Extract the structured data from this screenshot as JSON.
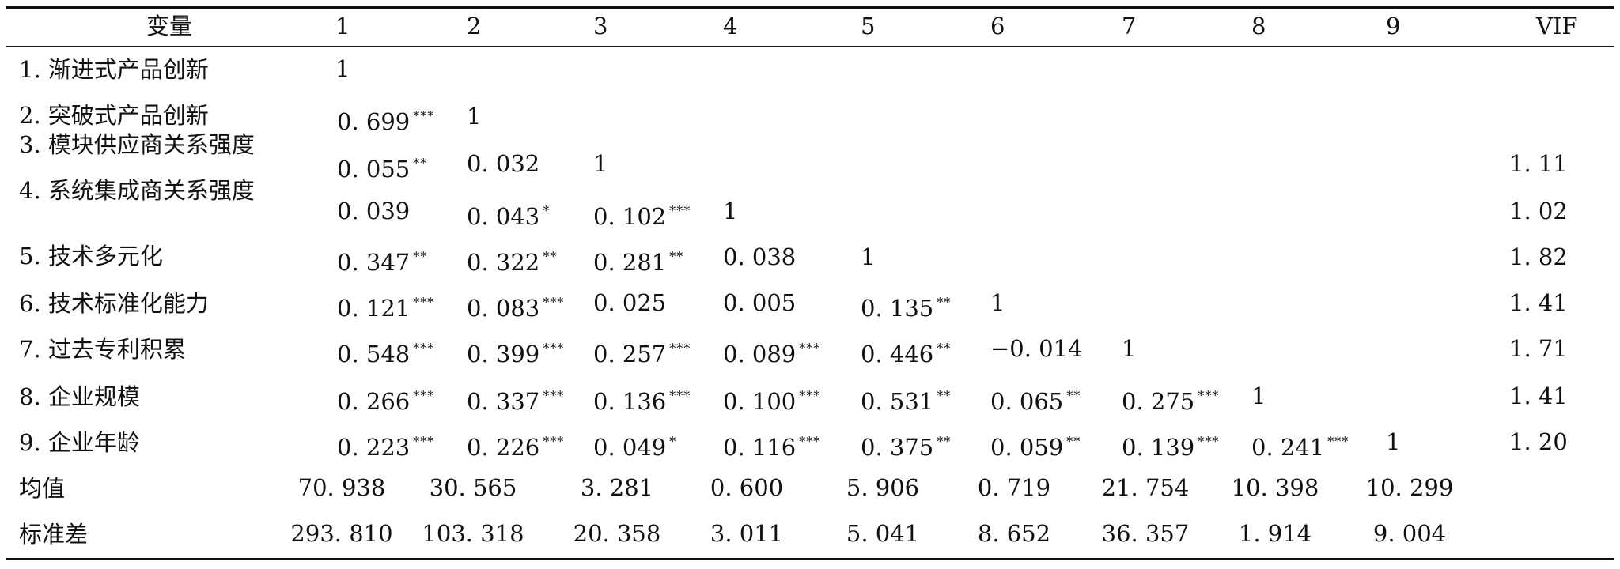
{
  "header": [
    "变量",
    "1",
    "2",
    "3",
    "4",
    "5",
    "6",
    "7",
    "8",
    "9",
    "VIF"
  ],
  "rows": [
    {
      "label": "1. 渐进式产品创新",
      "cells": [
        [
          "1",
          ""
        ]
      ],
      "vif": ""
    },
    {
      "label": "2. 突破式产品创新",
      "cells": [
        [
          "0. 699",
          "***"
        ],
        [
          "1",
          ""
        ]
      ],
      "vif": ""
    },
    {
      "label": "3. 模块供应商关系强度",
      "cells": [
        [
          "0. 055",
          "**"
        ],
        [
          "0. 032",
          ""
        ],
        [
          "1",
          ""
        ]
      ],
      "vif": "1. 11"
    },
    {
      "label": "4. 系统集成商关系强度",
      "cells": [
        [
          "0. 039",
          ""
        ],
        [
          "0. 043",
          "*"
        ],
        [
          "0. 102",
          "***"
        ],
        [
          "1",
          ""
        ]
      ],
      "vif": "1. 02"
    },
    {
      "label": "5. 技术多元化",
      "cells": [
        [
          "0. 347",
          "**"
        ],
        [
          "0. 322",
          "**"
        ],
        [
          "0. 281",
          "**"
        ],
        [
          "0. 038",
          ""
        ],
        [
          "1",
          ""
        ]
      ],
      "vif": "1. 82"
    },
    {
      "label": "6. 技术标准化能力",
      "cells": [
        [
          "0. 121",
          "***"
        ],
        [
          "0. 083",
          "***"
        ],
        [
          "0. 025",
          ""
        ],
        [
          "0. 005",
          ""
        ],
        [
          "0. 135",
          "**"
        ],
        [
          "1",
          ""
        ]
      ],
      "vif": "1. 41"
    },
    {
      "label": "7. 过去专利积累",
      "cells": [
        [
          "0. 548",
          "***"
        ],
        [
          "0. 399",
          "***"
        ],
        [
          "0. 257",
          "***"
        ],
        [
          "0. 089",
          "***"
        ],
        [
          "0. 446",
          "**"
        ],
        [
          "−0. 014",
          ""
        ],
        [
          "1",
          ""
        ]
      ],
      "vif": "1. 71"
    },
    {
      "label": "8. 企业规模",
      "cells": [
        [
          "0. 266",
          "***"
        ],
        [
          "0. 337",
          "***"
        ],
        [
          "0. 136",
          "***"
        ],
        [
          "0. 100",
          "***"
        ],
        [
          "0. 531",
          "**"
        ],
        [
          "0. 065",
          "**"
        ],
        [
          "0. 275",
          "***"
        ],
        [
          "1",
          ""
        ]
      ],
      "vif": "1. 41"
    },
    {
      "label": "9. 企业年龄",
      "cells": [
        [
          "0. 223",
          "***"
        ],
        [
          "0. 226",
          "***"
        ],
        [
          "0. 049",
          "*"
        ],
        [
          "0. 116",
          "***"
        ],
        [
          "0. 375",
          "**"
        ],
        [
          "0. 059",
          "**"
        ],
        [
          "0. 139",
          "***"
        ],
        [
          "0. 241",
          "***"
        ],
        [
          "1",
          ""
        ]
      ],
      "vif": "1. 20"
    }
  ],
  "stats": [
    {
      "label": "均值",
      "values": [
        "70. 938",
        "30. 565",
        "3. 281",
        "0. 600",
        "5. 906",
        "0. 719",
        "21. 754",
        "10. 398",
        "10. 299"
      ]
    },
    {
      "label": "标准差",
      "values": [
        "293. 810",
        "103. 318",
        "20. 358",
        "3. 011",
        "5. 041",
        "8. 652",
        "36. 357",
        "1. 914",
        "9. 004"
      ]
    }
  ]
}
